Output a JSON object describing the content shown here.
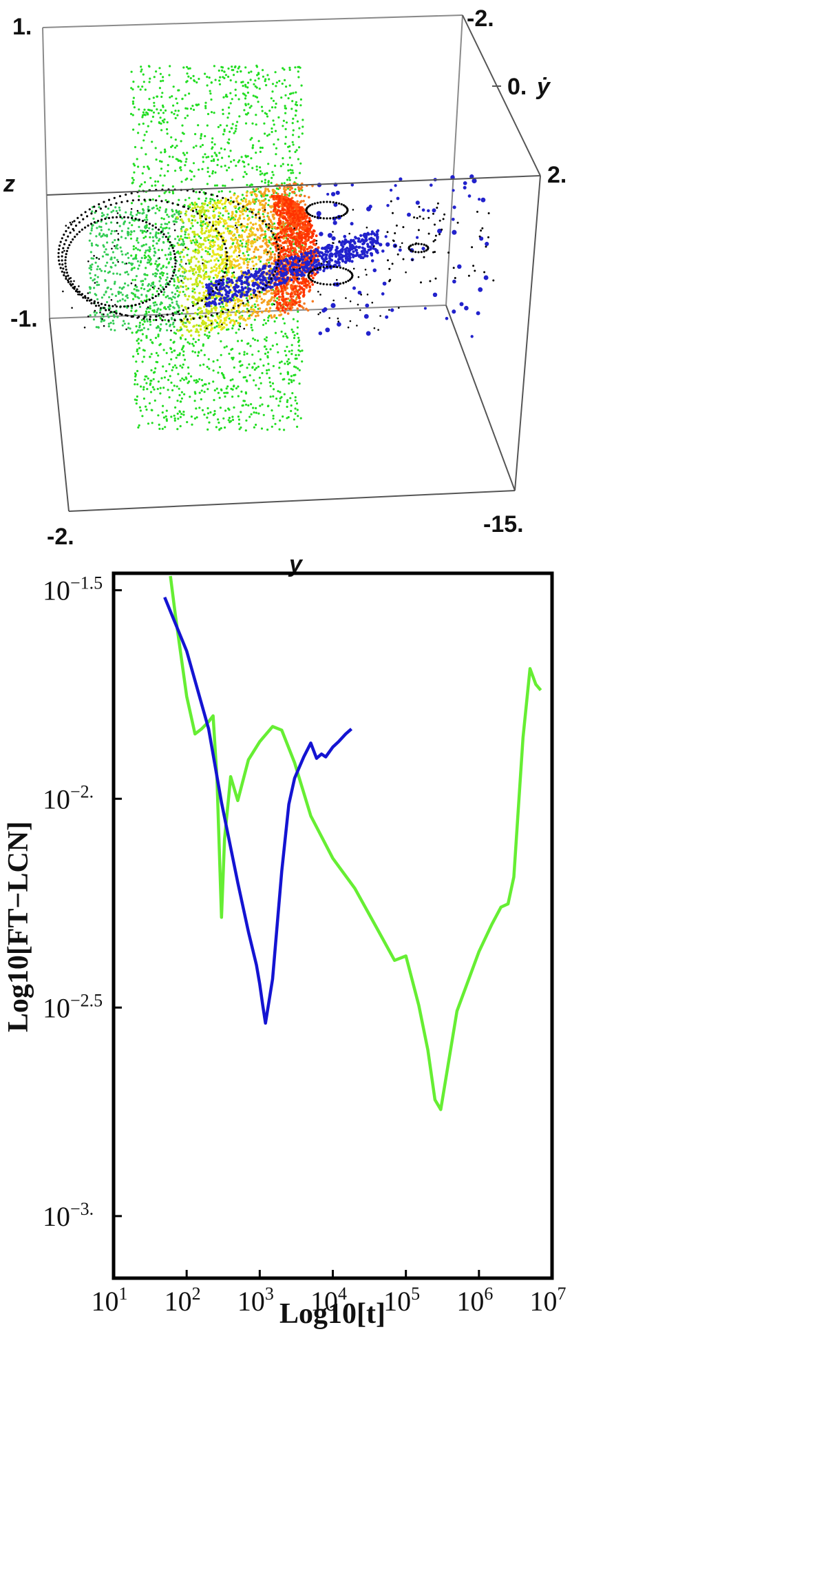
{
  "chart_data": [
    {
      "type": "scatter",
      "dimensions": 3,
      "axes": {
        "x": {
          "label": "y",
          "ticks": [
            "-2.",
            "-15."
          ]
        },
        "z": {
          "label": "z",
          "ticks": [
            "1.",
            "-1."
          ]
        },
        "depth": {
          "label": "ẏ",
          "ticks": [
            "-2.",
            "0.",
            "2."
          ]
        }
      },
      "series": [
        {
          "color": "#22dd22",
          "values": []
        },
        {
          "color": "#2222cc",
          "values": []
        },
        {
          "color": "#ff3300",
          "values": []
        },
        {
          "color": "#000000",
          "values": []
        }
      ]
    },
    {
      "type": "line",
      "xlabel": "Log10[t]",
      "ylabel": "Log10[FT−LCN]",
      "xscale": "log",
      "yscale": "log",
      "xlim": [
        10,
        10000000
      ],
      "ylim": [
        0.00071,
        0.0347
      ],
      "grid": false,
      "x_ticks": [
        {
          "value": 10,
          "base": "10",
          "exp": "1"
        },
        {
          "value": 100,
          "base": "10",
          "exp": "2"
        },
        {
          "value": 1000,
          "base": "10",
          "exp": "3"
        },
        {
          "value": 10000,
          "base": "10",
          "exp": "4"
        },
        {
          "value": 100000,
          "base": "10",
          "exp": "5"
        },
        {
          "value": 1000000,
          "base": "10",
          "exp": "6"
        },
        {
          "value": 10000000,
          "base": "10",
          "exp": "7"
        }
      ],
      "y_ticks": [
        {
          "value": 0.0316,
          "base": "10",
          "exp": "−1.5"
        },
        {
          "value": 0.01,
          "base": "10",
          "exp": "−2."
        },
        {
          "value": 0.00316,
          "base": "10",
          "exp": "−2.5"
        },
        {
          "value": 0.001,
          "base": "10",
          "exp": "−3."
        }
      ],
      "series": [
        {
          "color": "#66ee33",
          "x": [
            60,
            70,
            100,
            130,
            160,
            200,
            230,
            260,
            290,
            300,
            330,
            400,
            500,
            700,
            1000,
            1500,
            2000,
            3000,
            5000,
            10000,
            20000,
            40000,
            70000,
            100000,
            150000,
            200000,
            250000,
            300000,
            500000,
            1000000,
            1500000,
            2000000,
            2500000,
            3000000,
            4000000,
            5000000,
            6000000,
            7000000
          ],
          "y": [
            0.0355,
            0.0276,
            0.0176,
            0.0143,
            0.0147,
            0.0153,
            0.0158,
            0.0112,
            0.0062,
            0.0052,
            0.008,
            0.0113,
            0.0099,
            0.0124,
            0.0137,
            0.0149,
            0.0146,
            0.0122,
            0.0091,
            0.0072,
            0.0061,
            0.0049,
            0.0041,
            0.0042,
            0.0032,
            0.0025,
            0.0019,
            0.0018,
            0.0031,
            0.0043,
            0.005,
            0.0055,
            0.0056,
            0.0065,
            0.014,
            0.0205,
            0.0188,
            0.0182
          ]
        },
        {
          "color": "#1414d2",
          "x": [
            50,
            100,
            200,
            300,
            500,
            700,
            900,
            1000,
            1100,
            1200,
            1500,
            2000,
            2500,
            3000,
            4000,
            5000,
            6000,
            7000,
            8000,
            10000,
            12000,
            15000,
            18000
          ],
          "y": [
            0.0304,
            0.0226,
            0.0147,
            0.0098,
            0.0063,
            0.0048,
            0.004,
            0.0036,
            0.0032,
            0.0029,
            0.0037,
            0.0067,
            0.0097,
            0.0112,
            0.0126,
            0.0136,
            0.0125,
            0.0128,
            0.0126,
            0.0133,
            0.0137,
            0.0143,
            0.0147
          ]
        }
      ]
    }
  ]
}
